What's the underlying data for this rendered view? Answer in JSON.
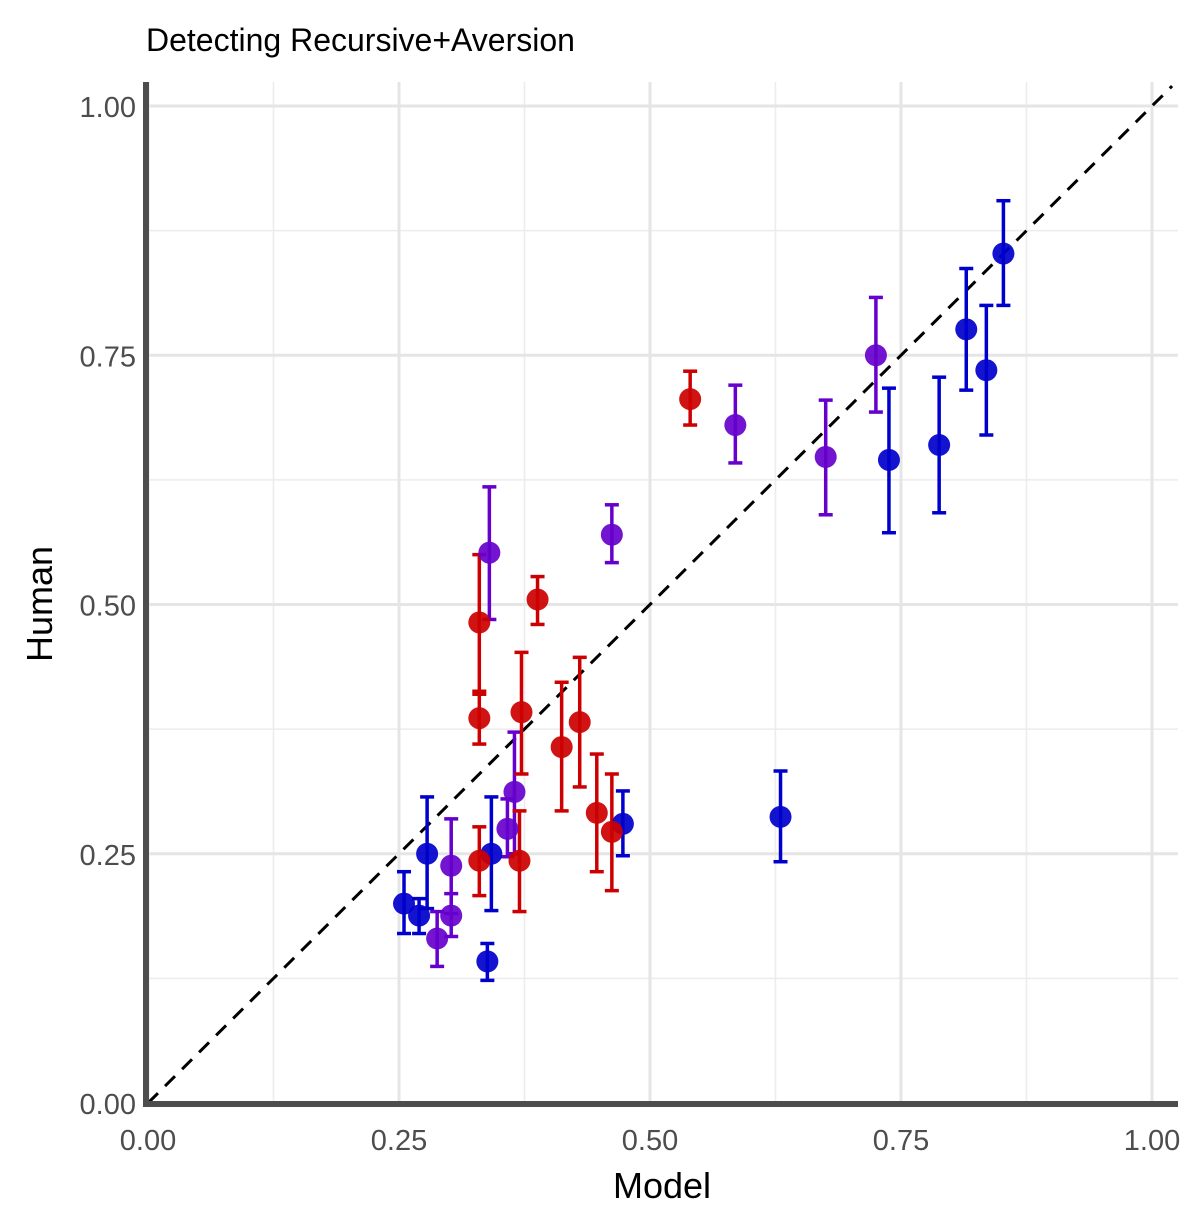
{
  "chart_data": {
    "type": "scatter",
    "title": "Detecting Recursive+Aversion",
    "xlabel": "Model",
    "ylabel": "Human",
    "xlim": [
      0,
      1
    ],
    "ylim": [
      0,
      1
    ],
    "x_ticks": [
      "0.00",
      "0.25",
      "0.50",
      "0.75",
      "1.00"
    ],
    "y_ticks": [
      "0.00",
      "0.25",
      "0.50",
      "0.75",
      "1.00"
    ],
    "grid": true,
    "reference_line": "y = x (dashed)",
    "colors": {
      "blue": "#0000cc",
      "purple": "#6600cc",
      "red": "#cc0000"
    },
    "series": [
      {
        "color": "blue",
        "points": [
          {
            "x": 0.255,
            "y": 0.2,
            "lo": 0.17,
            "hi": 0.232
          },
          {
            "x": 0.27,
            "y": 0.188,
            "lo": 0.17,
            "hi": 0.205
          },
          {
            "x": 0.278,
            "y": 0.25,
            "lo": 0.195,
            "hi": 0.307
          },
          {
            "x": 0.338,
            "y": 0.142,
            "lo": 0.123,
            "hi": 0.16
          },
          {
            "x": 0.342,
            "y": 0.25,
            "lo": 0.193,
            "hi": 0.307
          },
          {
            "x": 0.473,
            "y": 0.28,
            "lo": 0.248,
            "hi": 0.313
          },
          {
            "x": 0.63,
            "y": 0.287,
            "lo": 0.242,
            "hi": 0.333
          },
          {
            "x": 0.738,
            "y": 0.645,
            "lo": 0.572,
            "hi": 0.717
          },
          {
            "x": 0.788,
            "y": 0.66,
            "lo": 0.592,
            "hi": 0.728
          },
          {
            "x": 0.815,
            "y": 0.776,
            "lo": 0.715,
            "hi": 0.837
          },
          {
            "x": 0.835,
            "y": 0.735,
            "lo": 0.67,
            "hi": 0.8
          },
          {
            "x": 0.852,
            "y": 0.852,
            "lo": 0.8,
            "hi": 0.905
          }
        ]
      },
      {
        "color": "purple",
        "points": [
          {
            "x": 0.288,
            "y": 0.165,
            "lo": 0.137,
            "hi": 0.192
          },
          {
            "x": 0.302,
            "y": 0.188,
            "lo": 0.167,
            "hi": 0.21
          },
          {
            "x": 0.302,
            "y": 0.238,
            "lo": 0.19,
            "hi": 0.285
          },
          {
            "x": 0.34,
            "y": 0.552,
            "lo": 0.485,
            "hi": 0.618
          },
          {
            "x": 0.358,
            "y": 0.275,
            "lo": 0.247,
            "hi": 0.305
          },
          {
            "x": 0.365,
            "y": 0.312,
            "lo": 0.25,
            "hi": 0.372
          },
          {
            "x": 0.462,
            "y": 0.57,
            "lo": 0.542,
            "hi": 0.6
          },
          {
            "x": 0.585,
            "y": 0.68,
            "lo": 0.642,
            "hi": 0.72
          },
          {
            "x": 0.675,
            "y": 0.648,
            "lo": 0.59,
            "hi": 0.705
          },
          {
            "x": 0.725,
            "y": 0.75,
            "lo": 0.693,
            "hi": 0.808
          }
        ]
      },
      {
        "color": "red",
        "points": [
          {
            "x": 0.33,
            "y": 0.482,
            "lo": 0.413,
            "hi": 0.55
          },
          {
            "x": 0.33,
            "y": 0.386,
            "lo": 0.36,
            "hi": 0.41
          },
          {
            "x": 0.33,
            "y": 0.243,
            "lo": 0.208,
            "hi": 0.277
          },
          {
            "x": 0.37,
            "y": 0.243,
            "lo": 0.192,
            "hi": 0.293
          },
          {
            "x": 0.372,
            "y": 0.392,
            "lo": 0.33,
            "hi": 0.452
          },
          {
            "x": 0.388,
            "y": 0.505,
            "lo": 0.48,
            "hi": 0.528
          },
          {
            "x": 0.412,
            "y": 0.357,
            "lo": 0.293,
            "hi": 0.422
          },
          {
            "x": 0.43,
            "y": 0.382,
            "lo": 0.317,
            "hi": 0.447
          },
          {
            "x": 0.447,
            "y": 0.291,
            "lo": 0.232,
            "hi": 0.35
          },
          {
            "x": 0.462,
            "y": 0.272,
            "lo": 0.213,
            "hi": 0.33
          },
          {
            "x": 0.54,
            "y": 0.706,
            "lo": 0.68,
            "hi": 0.734
          }
        ]
      }
    ]
  }
}
